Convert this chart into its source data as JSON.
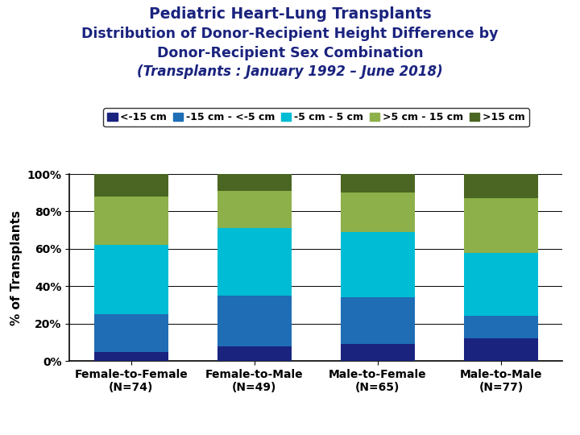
{
  "title1": "Pediatric Heart-Lung Transplants",
  "title2": "Distribution of Donor-Recipient Height Difference by",
  "title3": "Donor-Recipient Sex Combination",
  "title4": "(Transplants : January 1992 – June 2018)",
  "categories": [
    "Female-to-Female\n(N=74)",
    "Female-to-Male\n(N=49)",
    "Male-to-Female\n(N=65)",
    "Male-to-Male\n(N=77)"
  ],
  "legend_labels": [
    "<-15 cm",
    "-15 cm - <-5 cm",
    "-5 cm - 5 cm",
    ">5 cm - 15 cm",
    ">15 cm"
  ],
  "colors": [
    "#1a237e",
    "#1e6db5",
    "#00bcd4",
    "#8db04a",
    "#4a6622"
  ],
  "data": {
    "lt_minus15": [
      5,
      8,
      9,
      12
    ],
    "minus15_minus5": [
      20,
      27,
      25,
      12
    ],
    "minus5_5": [
      37,
      36,
      35,
      34
    ],
    "gt5_15": [
      26,
      20,
      21,
      29
    ],
    "gt15": [
      12,
      9,
      10,
      13
    ]
  },
  "ylabel": "% of Transplants",
  "yticks": [
    0,
    20,
    40,
    60,
    80,
    100
  ],
  "ylim": [
    0,
    100
  ],
  "background_color": "#ffffff",
  "title_color": "#1a237e",
  "title_fontsize": 13.5,
  "subtitle_fontsize": 12.5,
  "date_fontsize": 12,
  "axis_label_fontsize": 11,
  "tick_fontsize": 10,
  "legend_fontsize": 9
}
